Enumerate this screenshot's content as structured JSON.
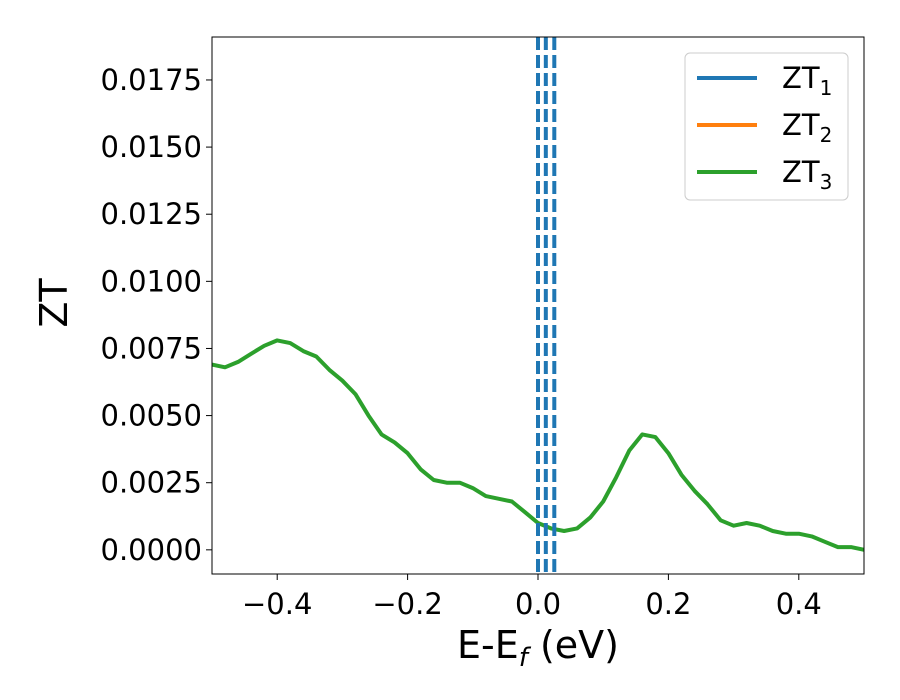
{
  "chart_data": {
    "type": "line",
    "title": "",
    "xlabel": "E-E",
    "xlabel_sub": "f",
    "xlabel_unit": " (eV)",
    "ylabel": "ZT",
    "xlim": [
      -0.5,
      0.5
    ],
    "ylim": [
      -0.0009,
      0.0191
    ],
    "xticks": [
      -0.4,
      -0.2,
      0.0,
      0.2,
      0.4
    ],
    "xtick_labels": [
      "−0.4",
      "−0.2",
      "0.0",
      "0.2",
      "0.4"
    ],
    "yticks": [
      0.0,
      0.0025,
      0.005,
      0.0075,
      0.01,
      0.0125,
      0.015,
      0.0175
    ],
    "ytick_labels": [
      "0.0000",
      "0.0025",
      "0.0050",
      "0.0075",
      "0.0100",
      "0.0125",
      "0.0150",
      "0.0175"
    ],
    "grid": false,
    "legend_position": "top-right",
    "vlines": [
      {
        "x": 0.0,
        "color": "#000000",
        "style": "dashed"
      },
      {
        "x": 0.0,
        "color": "#1f77b4",
        "style": "dashed"
      },
      {
        "x": 0.012,
        "color": "#1f77b4",
        "style": "dashed"
      },
      {
        "x": 0.025,
        "color": "#1f77b4",
        "style": "dashed"
      }
    ],
    "series": [
      {
        "name": "ZT",
        "subscript": "1",
        "color": "#1f77b4",
        "points": []
      },
      {
        "name": "ZT",
        "subscript": "2",
        "color": "#ff7f0e",
        "points": []
      },
      {
        "name": "ZT",
        "subscript": "3",
        "color": "#2ca02c",
        "points": [
          [
            -0.5,
            0.0069
          ],
          [
            -0.48,
            0.0068
          ],
          [
            -0.46,
            0.007
          ],
          [
            -0.44,
            0.0073
          ],
          [
            -0.42,
            0.0076
          ],
          [
            -0.4,
            0.0078
          ],
          [
            -0.38,
            0.0077
          ],
          [
            -0.36,
            0.0074
          ],
          [
            -0.34,
            0.0072
          ],
          [
            -0.32,
            0.0067
          ],
          [
            -0.3,
            0.0063
          ],
          [
            -0.28,
            0.0058
          ],
          [
            -0.26,
            0.005
          ],
          [
            -0.24,
            0.0043
          ],
          [
            -0.22,
            0.004
          ],
          [
            -0.2,
            0.0036
          ],
          [
            -0.18,
            0.003
          ],
          [
            -0.16,
            0.0026
          ],
          [
            -0.14,
            0.0025
          ],
          [
            -0.12,
            0.0025
          ],
          [
            -0.1,
            0.0023
          ],
          [
            -0.08,
            0.002
          ],
          [
            -0.06,
            0.0019
          ],
          [
            -0.04,
            0.0018
          ],
          [
            -0.02,
            0.0014
          ],
          [
            0.0,
            0.001
          ],
          [
            0.02,
            0.0008
          ],
          [
            0.04,
            0.0007
          ],
          [
            0.06,
            0.0008
          ],
          [
            0.08,
            0.0012
          ],
          [
            0.1,
            0.0018
          ],
          [
            0.12,
            0.0027
          ],
          [
            0.14,
            0.0037
          ],
          [
            0.16,
            0.0043
          ],
          [
            0.18,
            0.0042
          ],
          [
            0.2,
            0.0036
          ],
          [
            0.22,
            0.0028
          ],
          [
            0.24,
            0.0022
          ],
          [
            0.26,
            0.0017
          ],
          [
            0.28,
            0.0011
          ],
          [
            0.3,
            0.0009
          ],
          [
            0.32,
            0.001
          ],
          [
            0.34,
            0.0009
          ],
          [
            0.36,
            0.0007
          ],
          [
            0.38,
            0.0006
          ],
          [
            0.4,
            0.0006
          ],
          [
            0.42,
            0.0005
          ],
          [
            0.44,
            0.0003
          ],
          [
            0.46,
            0.0001
          ],
          [
            0.48,
            0.0001
          ],
          [
            0.5,
            0.0
          ]
        ]
      }
    ]
  }
}
